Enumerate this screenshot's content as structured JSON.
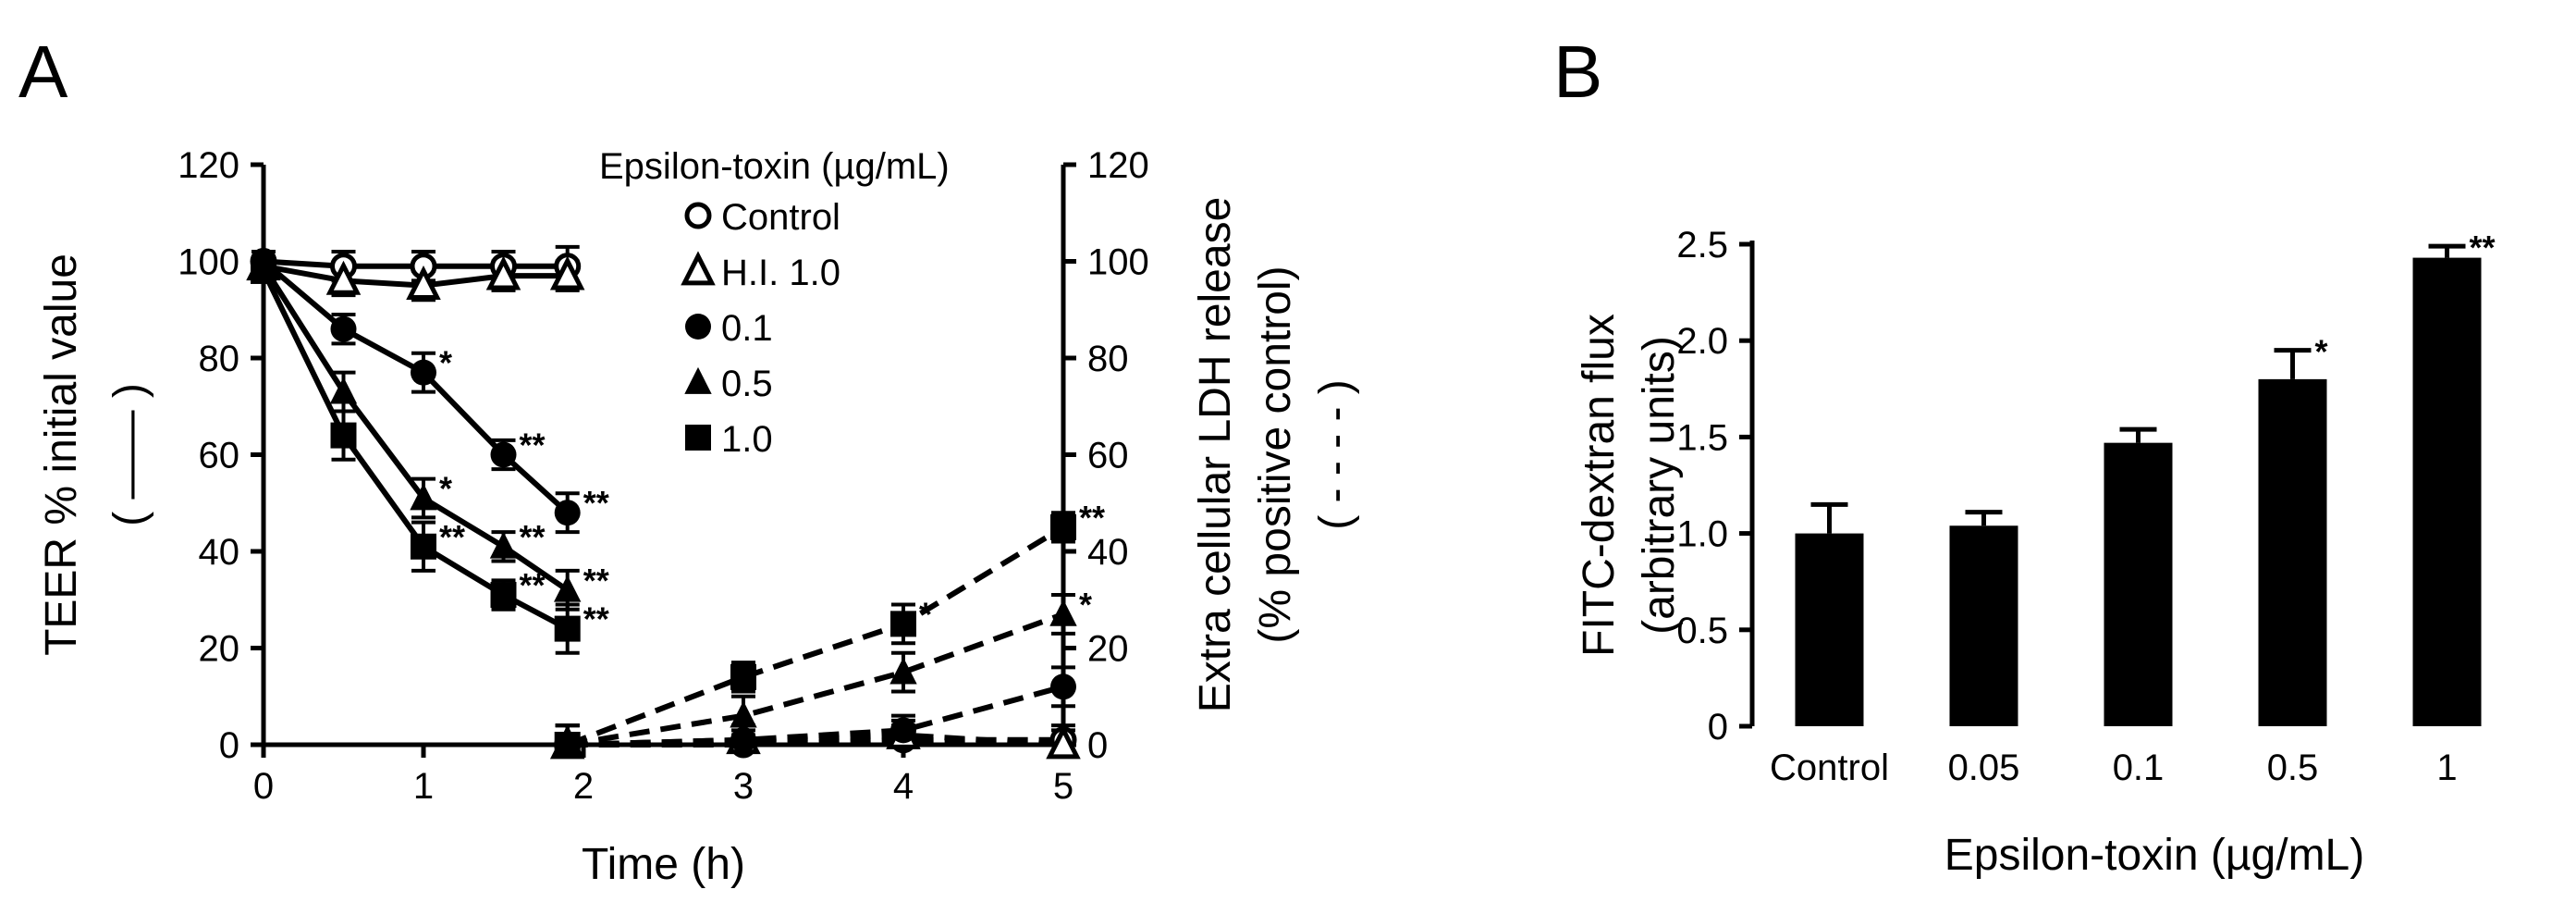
{
  "figure": {
    "panel_a_letter": "A",
    "panel_b_letter": "B"
  },
  "colors": {
    "ink": "#000000",
    "background": "#ffffff"
  },
  "chart_data": [
    {
      "type": "line",
      "panel": "A",
      "xlabel": "Time (h)",
      "ylabel_left": "TEER % initial value",
      "ylabel_left_symbol": "( —— )",
      "ylabel_right_line1": "Extra cellular LDH release",
      "ylabel_right_line2": "(%  positive control)",
      "ylabel_right_symbol": "( - - - - )",
      "xlim": [
        0,
        5
      ],
      "ylim_left": [
        0,
        120
      ],
      "ylim_right": [
        0,
        120
      ],
      "xticks": [
        "0",
        "1",
        "2",
        "3",
        "4",
        "5"
      ],
      "yticks_left": [
        "0",
        "20",
        "40",
        "60",
        "80",
        "100",
        "120"
      ],
      "yticks_right": [
        "0",
        "20",
        "40",
        "60",
        "80",
        "100",
        "120"
      ],
      "legend": {
        "title": "Epsilon-toxin  (µg/mL)",
        "entries": [
          {
            "label": "Control",
            "marker": "open-circle"
          },
          {
            "label": "H.I. 1.0",
            "marker": "open-triangle"
          },
          {
            "label": "0.1",
            "marker": "filled-circle"
          },
          {
            "label": "0.5",
            "marker": "filled-triangle"
          },
          {
            "label": "1.0",
            "marker": "filled-square"
          }
        ],
        "placement": "top-right"
      },
      "teer_series": [
        {
          "name": "Control",
          "marker": "open-circle",
          "x": [
            0,
            0.5,
            1,
            1.5,
            1.9
          ],
          "y": [
            100,
            99,
            99,
            99,
            99
          ],
          "err": [
            2,
            3,
            3,
            3,
            4
          ],
          "sig": [
            "",
            "",
            "",
            "",
            ""
          ]
        },
        {
          "name": "H.I. 1.0",
          "marker": "open-triangle",
          "x": [
            0,
            0.5,
            1,
            1.5,
            1.9
          ],
          "y": [
            99,
            96,
            95,
            97,
            97
          ],
          "err": [
            2,
            3,
            3,
            3,
            3
          ],
          "sig": [
            "",
            "",
            "",
            "",
            ""
          ]
        },
        {
          "name": "0.1",
          "marker": "filled-circle",
          "x": [
            0,
            0.5,
            1,
            1.5,
            1.9
          ],
          "y": [
            100,
            86,
            77,
            60,
            48
          ],
          "err": [
            2,
            3,
            4,
            3,
            4
          ],
          "sig": [
            "",
            "",
            "*",
            "**",
            "**"
          ]
        },
        {
          "name": "0.5",
          "marker": "filled-triangle",
          "x": [
            0,
            0.5,
            1,
            1.5,
            1.9
          ],
          "y": [
            99,
            73,
            51,
            41,
            32
          ],
          "err": [
            2,
            4,
            4,
            3,
            4
          ],
          "sig": [
            "",
            "",
            "*",
            "**",
            "**"
          ]
        },
        {
          "name": "1.0",
          "marker": "filled-square",
          "x": [
            0,
            0.5,
            1,
            1.5,
            1.9
          ],
          "y": [
            98,
            64,
            41,
            31,
            24
          ],
          "err": [
            2,
            5,
            5,
            3,
            5
          ],
          "sig": [
            "",
            "",
            "**",
            "**",
            "**"
          ]
        }
      ],
      "ldh_series": [
        {
          "name": "Control",
          "marker": "open-circle",
          "x": [
            1.9,
            3,
            4,
            5
          ],
          "y": [
            0,
            0,
            1,
            1
          ],
          "err": [
            4,
            3,
            3,
            3
          ],
          "sig": [
            "",
            "",
            "",
            ""
          ]
        },
        {
          "name": "H.I. 1.0",
          "marker": "open-triangle",
          "x": [
            1.9,
            3,
            4,
            5
          ],
          "y": [
            0,
            1,
            2,
            0
          ],
          "err": [
            4,
            3,
            3,
            3
          ],
          "sig": [
            "",
            "",
            "",
            ""
          ]
        },
        {
          "name": "0.1",
          "marker": "filled-circle",
          "x": [
            1.9,
            3,
            4,
            5
          ],
          "y": [
            0,
            1,
            3,
            12
          ],
          "err": [
            4,
            3,
            3,
            4
          ],
          "sig": [
            "",
            "",
            "",
            ""
          ]
        },
        {
          "name": "0.5",
          "marker": "filled-triangle",
          "x": [
            1.9,
            3,
            4,
            5
          ],
          "y": [
            0,
            6,
            15,
            27
          ],
          "err": [
            4,
            4,
            4,
            4
          ],
          "sig": [
            "",
            "",
            "",
            "*"
          ]
        },
        {
          "name": "1.0",
          "marker": "filled-square",
          "x": [
            1.9,
            3,
            4,
            5
          ],
          "y": [
            0,
            14,
            25,
            45
          ],
          "err": [
            4,
            3,
            4,
            3
          ],
          "sig": [
            "",
            "",
            "*",
            "**"
          ]
        }
      ]
    },
    {
      "type": "bar",
      "panel": "B",
      "categories": [
        "Control",
        "0.05",
        "0.1",
        "0.5",
        "1"
      ],
      "values": [
        1.0,
        1.04,
        1.47,
        1.8,
        2.43
      ],
      "errors": [
        0.15,
        0.07,
        0.07,
        0.15,
        0.06
      ],
      "sig": [
        "",
        "",
        "",
        "*",
        "**"
      ],
      "xlabel": "Epsilon-toxin (µg/mL)",
      "ylabel_line1": "FITC-dextran flux",
      "ylabel_line2": "(arbitrary units)",
      "ylim": [
        0,
        2.5
      ],
      "yticks": [
        "0",
        "0.5",
        "1.0",
        "1.5",
        "2.0",
        "2.5"
      ]
    }
  ]
}
